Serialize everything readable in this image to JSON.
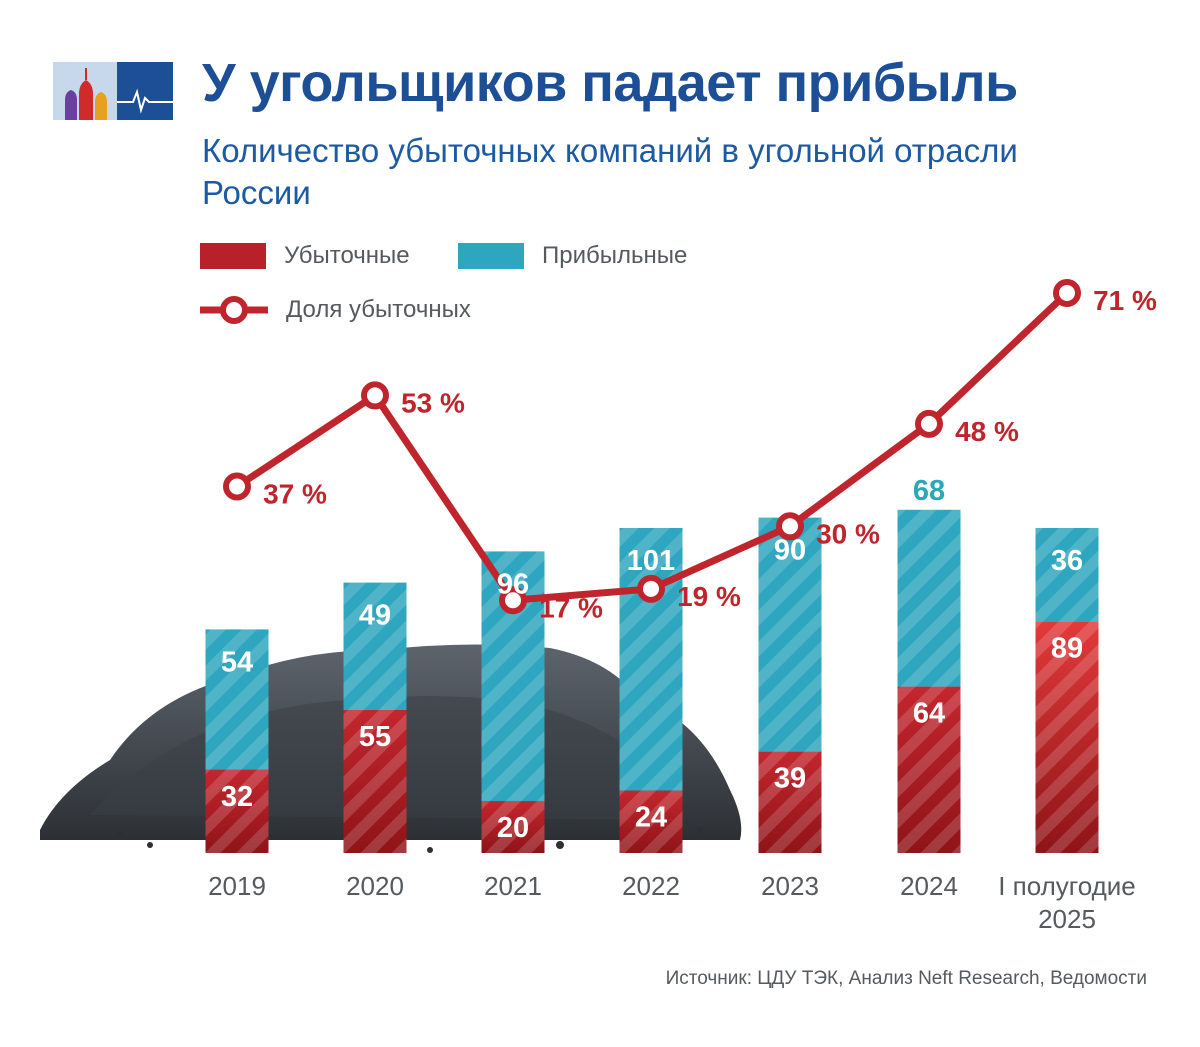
{
  "header": {
    "title": "У угольщиков падает прибыль",
    "subtitle": "Количество убыточных компаний в угольной отрасли России"
  },
  "legend": {
    "loss": "Убыточные",
    "profit": "Прибыльные",
    "share": "Доля убыточных"
  },
  "source": "Источник: ЦДУ ТЭК, Анализ Neft Research, Ведомости",
  "colors": {
    "loss": "#b8202a",
    "profit": "#2ea6bf",
    "line": "#c0252d",
    "title": "#1c4f96",
    "profit_label_2024": "#2aa8b8"
  },
  "chart_data": {
    "type": "bar",
    "stacked": true,
    "title": "Количество убыточных компаний в угольной отрасли России",
    "categories": [
      "2019",
      "2020",
      "2021",
      "2022",
      "2023",
      "2024",
      "I полугодие 2025"
    ],
    "series": [
      {
        "name": "Убыточные",
        "values": [
          32,
          55,
          20,
          24,
          39,
          64,
          89
        ]
      },
      {
        "name": "Прибыльные",
        "values": [
          54,
          49,
          96,
          101,
          90,
          68,
          36
        ]
      }
    ],
    "line_series": {
      "name": "Доля убыточных",
      "values": [
        37,
        53,
        17,
        19,
        30,
        48,
        71
      ],
      "labels": [
        "37 %",
        "53 %",
        "17 %",
        "19 %",
        "30 %",
        "48 %",
        "71 %"
      ],
      "unit": "%"
    }
  }
}
